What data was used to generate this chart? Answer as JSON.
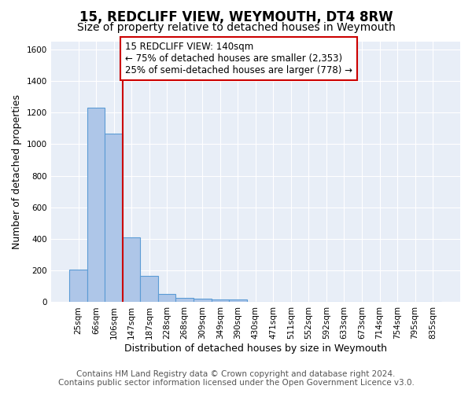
{
  "title": "15, REDCLIFF VIEW, WEYMOUTH, DT4 8RW",
  "subtitle": "Size of property relative to detached houses in Weymouth",
  "xlabel": "Distribution of detached houses by size in Weymouth",
  "ylabel": "Number of detached properties",
  "bin_labels": [
    "25sqm",
    "66sqm",
    "106sqm",
    "147sqm",
    "187sqm",
    "228sqm",
    "268sqm",
    "309sqm",
    "349sqm",
    "390sqm",
    "430sqm",
    "471sqm",
    "511sqm",
    "552sqm",
    "592sqm",
    "633sqm",
    "673sqm",
    "714sqm",
    "754sqm",
    "795sqm",
    "835sqm"
  ],
  "bar_heights": [
    205,
    1230,
    1065,
    410,
    165,
    50,
    25,
    20,
    15,
    15,
    0,
    0,
    0,
    0,
    0,
    0,
    0,
    0,
    0,
    0,
    0
  ],
  "bar_color": "#aec6e8",
  "bar_edge_color": "#5b9bd5",
  "vline_color": "#cc0000",
  "vline_pos": 2.5,
  "annotation_text": "15 REDCLIFF VIEW: 140sqm\n← 75% of detached houses are smaller (2,353)\n25% of semi-detached houses are larger (778) →",
  "annotation_box_color": "#ffffff",
  "annotation_box_edge_color": "#cc0000",
  "ylim": [
    0,
    1650
  ],
  "yticks": [
    0,
    200,
    400,
    600,
    800,
    1000,
    1200,
    1400,
    1600
  ],
  "background_color": "#e8eef7",
  "fig_background_color": "#ffffff",
  "grid_color": "#ffffff",
  "footer_line1": "Contains HM Land Registry data © Crown copyright and database right 2024.",
  "footer_line2": "Contains public sector information licensed under the Open Government Licence v3.0.",
  "title_fontsize": 12,
  "subtitle_fontsize": 10,
  "xlabel_fontsize": 9,
  "ylabel_fontsize": 9,
  "annotation_fontsize": 8.5,
  "footer_fontsize": 7.5,
  "tick_fontsize": 7.5
}
